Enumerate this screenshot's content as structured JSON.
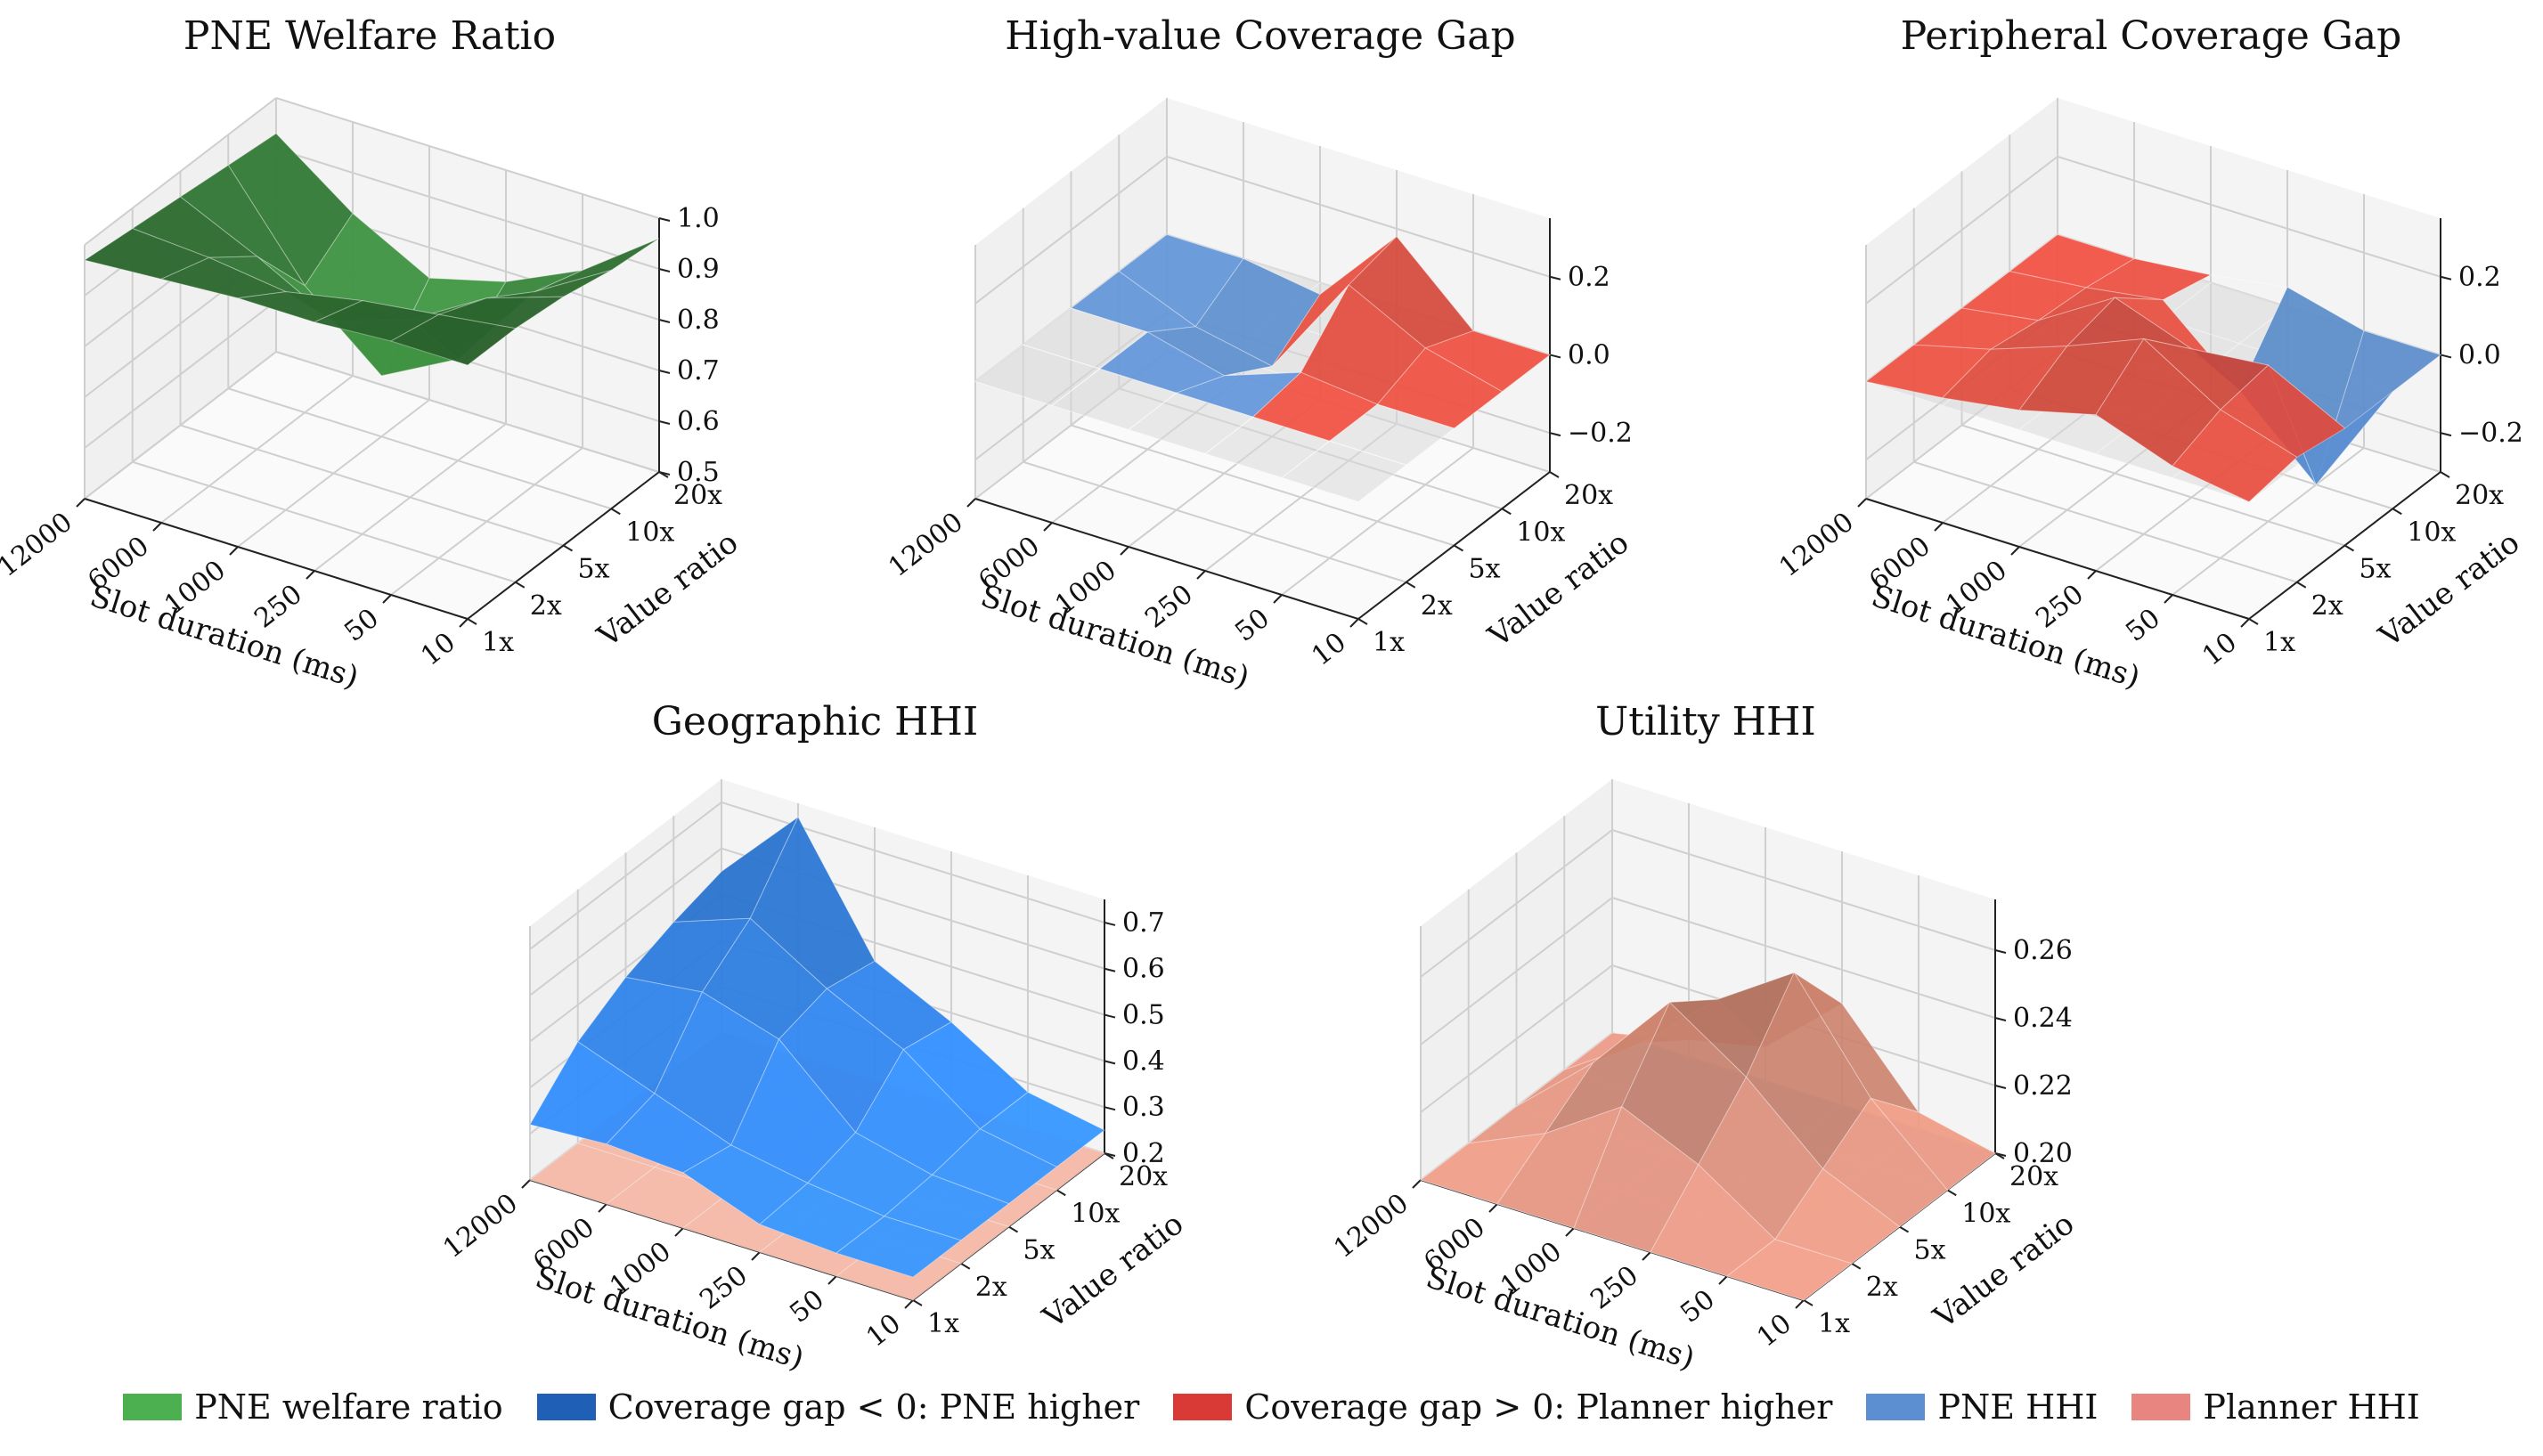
{
  "chart_data": [
    {
      "type": "surface3d",
      "title": "PNE Welfare Ratio",
      "xlabel": "Slot duration (ms)",
      "ylabel": "Value ratio",
      "x_ticks": [
        "12000",
        "6000",
        "1000",
        "250",
        "50",
        "10"
      ],
      "y_ticks": [
        "1x",
        "2x",
        "5x",
        "10x",
        "20x"
      ],
      "z_ticks": [
        "0.5",
        "0.6",
        "0.7",
        "0.8",
        "0.9",
        "1.0"
      ],
      "zlim": [
        0.5,
        1.0
      ],
      "grid": true,
      "series": [
        {
          "name": "PNE welfare ratio",
          "color": "#2e7d47",
          "z": [
            [
              0.97,
              0.98,
              0.99,
              0.99,
              1.0,
              1.0
            ],
            [
              0.96,
              0.95,
              0.93,
              0.96,
              0.98,
              1.0
            ],
            [
              0.95,
              0.88,
              0.8,
              0.85,
              0.94,
              0.99
            ],
            [
              0.94,
              0.75,
              0.62,
              0.7,
              0.88,
              0.97
            ],
            [
              0.93,
              0.82,
              0.74,
              0.78,
              0.85,
              0.96
            ]
          ]
        }
      ]
    },
    {
      "type": "surface3d",
      "title": "High-value Coverage Gap",
      "xlabel": "Slot duration (ms)",
      "ylabel": "Value ratio",
      "x_ticks": [
        "12000",
        "6000",
        "1000",
        "250",
        "50",
        "10"
      ],
      "y_ticks": [
        "1x",
        "2x",
        "5x",
        "10x",
        "20x"
      ],
      "z_ticks": [
        "−0.2",
        "0.0",
        "0.2"
      ],
      "zlim": [
        -0.3,
        0.35
      ],
      "grid": true,
      "series": [
        {
          "name": "Coverage gap",
          "z": [
            [
              0,
              0,
              0,
              0,
              0,
              0
            ],
            [
              0,
              0,
              0,
              0,
              0,
              0
            ],
            [
              0,
              0,
              -0.05,
              0.02,
              0,
              0
            ],
            [
              0,
              -0.08,
              -0.12,
              0.15,
              0.05,
              0
            ],
            [
              0,
              0,
              -0.03,
              0.18,
              0,
              0
            ]
          ]
        }
      ]
    },
    {
      "type": "surface3d",
      "title": "Peripheral Coverage Gap",
      "xlabel": "Slot duration (ms)",
      "ylabel": "Value ratio",
      "x_ticks": [
        "12000",
        "6000",
        "1000",
        "250",
        "50",
        "10"
      ],
      "y_ticks": [
        "1x",
        "2x",
        "5x",
        "10x",
        "20x"
      ],
      "z_ticks": [
        "−0.2",
        "0.0",
        "0.2"
      ],
      "zlim": [
        -0.3,
        0.35
      ],
      "grid": true,
      "series": [
        {
          "name": "Coverage gap",
          "z": [
            [
              0,
              0.02,
              0.05,
              0.1,
              0.03,
              0
            ],
            [
              0,
              0.05,
              0.12,
              0.2,
              0.08,
              0.02
            ],
            [
              0,
              0.03,
              0.15,
              0.08,
              0.1,
              0
            ],
            [
              0,
              0.02,
              0.05,
              -0.12,
              -0.3,
              0
            ],
            [
              0,
              0,
              0.02,
              0.05,
              0,
              0
            ]
          ]
        }
      ]
    },
    {
      "type": "surface3d",
      "title": "Geographic HHI",
      "xlabel": "Slot duration (ms)",
      "ylabel": "Value ratio",
      "x_ticks": [
        "12000",
        "6000",
        "1000",
        "250",
        "50",
        "10"
      ],
      "y_ticks": [
        "1x",
        "2x",
        "5x",
        "10x",
        "20x"
      ],
      "z_ticks": [
        "0.2",
        "0.3",
        "0.4",
        "0.5",
        "0.6",
        "0.7"
      ],
      "zlim": [
        0.2,
        0.75
      ],
      "grid": true,
      "series": [
        {
          "name": "PNE HHI",
          "z": [
            [
              0.32,
              0.33,
              0.32,
              0.26,
              0.25,
              0.25
            ],
            [
              0.42,
              0.36,
              0.3,
              0.27,
              0.25,
              0.25
            ],
            [
              0.48,
              0.5,
              0.45,
              0.3,
              0.26,
              0.25
            ],
            [
              0.52,
              0.58,
              0.48,
              0.4,
              0.28,
              0.25
            ],
            [
              0.55,
              0.72,
              0.46,
              0.38,
              0.28,
              0.25
            ]
          ]
        },
        {
          "name": "Planner HHI",
          "z": [
            [
              0.2,
              0.2,
              0.2,
              0.2,
              0.2,
              0.2
            ],
            [
              0.2,
              0.2,
              0.2,
              0.2,
              0.2,
              0.2
            ],
            [
              0.2,
              0.2,
              0.2,
              0.2,
              0.2,
              0.2
            ],
            [
              0.2,
              0.2,
              0.2,
              0.2,
              0.2,
              0.2
            ],
            [
              0.2,
              0.2,
              0.2,
              0.2,
              0.2,
              0.2
            ]
          ]
        }
      ]
    },
    {
      "type": "surface3d",
      "title": "Utility HHI",
      "xlabel": "Slot duration (ms)",
      "ylabel": "Value ratio",
      "x_ticks": [
        "12000",
        "6000",
        "1000",
        "250",
        "50",
        "10"
      ],
      "y_ticks": [
        "1x",
        "2x",
        "5x",
        "10x",
        "20x"
      ],
      "z_ticks": [
        "0.20",
        "0.22",
        "0.24",
        "0.26"
      ],
      "zlim": [
        0.2,
        0.275
      ],
      "grid": true,
      "series": [
        {
          "name": "PNE HHI",
          "z": [
            [
              0.2,
              0.2,
              0.195,
              0.2,
              0.2,
              0.2
            ],
            [
              0.2,
              0.198,
              0.19,
              0.195,
              0.2,
              0.2
            ],
            [
              0.2,
              0.2,
              0.198,
              0.2,
              0.2,
              0.2
            ],
            [
              0.2,
              0.2,
              0.2,
              0.2,
              0.2,
              0.2
            ],
            [
              0.2,
              0.2,
              0.2,
              0.2,
              0.2,
              0.2
            ]
          ]
        },
        {
          "name": "Planner HHI",
          "z": [
            [
              0.2,
              0.2,
              0.2,
              0.2,
              0.2,
              0.2
            ],
            [
              0.2,
              0.21,
              0.225,
              0.215,
              0.2,
              0.2
            ],
            [
              0.2,
              0.22,
              0.245,
              0.23,
              0.21,
              0.2
            ],
            [
              0.2,
              0.215,
              0.235,
              0.25,
              0.22,
              0.2
            ],
            [
              0.2,
              0.205,
              0.21,
              0.23,
              0.205,
              0.2
            ]
          ]
        }
      ]
    }
  ],
  "legend": {
    "placement": "bottom-center",
    "items": [
      {
        "label": "PNE welfare ratio",
        "color": "#4caf50"
      },
      {
        "label": "Coverage gap < 0: PNE higher",
        "color": "#1f5fb5"
      },
      {
        "label": "Coverage gap > 0: Planner higher",
        "color": "#d93a36"
      },
      {
        "label": "PNE HHI",
        "color": "#5b8fd1"
      },
      {
        "label": "Planner HHI",
        "color": "#e88580"
      }
    ]
  }
}
